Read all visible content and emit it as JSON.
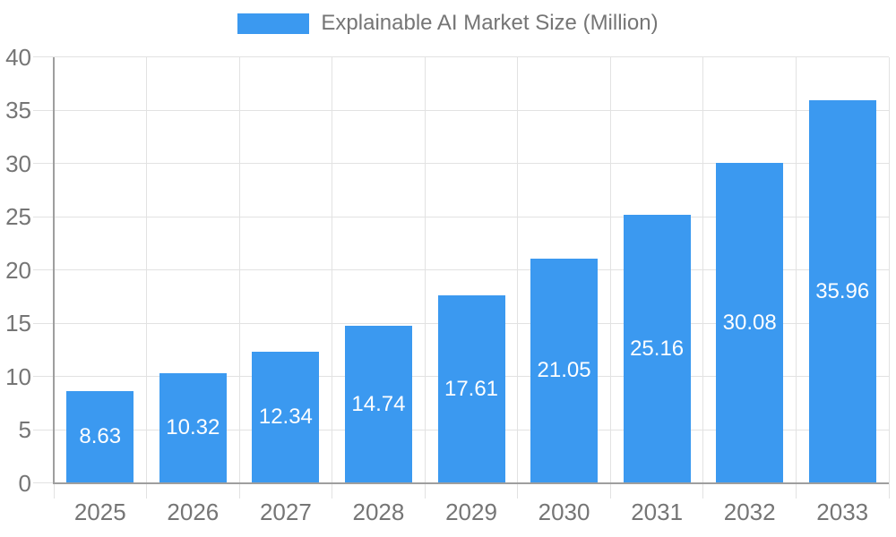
{
  "chart_data": {
    "type": "bar",
    "title": "Explainable AI Market Size (Million)",
    "series_name": "Explainable AI Market Size (Million)",
    "categories": [
      "2025",
      "2026",
      "2027",
      "2028",
      "2029",
      "2030",
      "2031",
      "2032",
      "2033"
    ],
    "values": [
      8.63,
      10.32,
      12.34,
      14.74,
      17.61,
      21.05,
      25.16,
      30.08,
      35.96
    ],
    "value_labels": [
      "8.63",
      "10.32",
      "12.34",
      "14.74",
      "17.61",
      "21.05",
      "25.16",
      "30.08",
      "35.96"
    ],
    "y_ticks": [
      0,
      5,
      10,
      15,
      20,
      25,
      30,
      35,
      40
    ],
    "y_tick_labels": [
      "0",
      "5",
      "10",
      "15",
      "20",
      "25",
      "30",
      "35",
      "40"
    ],
    "ylim": [
      0,
      40
    ],
    "xlabel": "",
    "ylabel": "",
    "grid": true,
    "legend_position": "top",
    "colors": {
      "bar": "#3B99F0",
      "axis_text": "#757575",
      "value_text": "#FFFFFF",
      "gridline": "#E2E2E2",
      "axis_line": "#9E9E9E",
      "background": "#FFFFFF"
    }
  }
}
